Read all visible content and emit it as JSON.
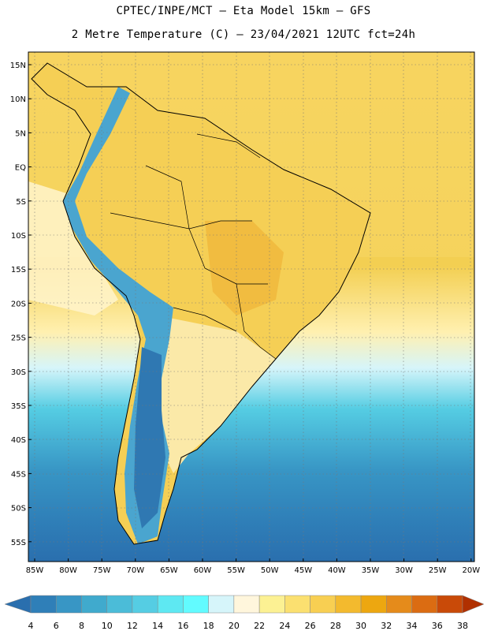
{
  "header": {
    "line1": "CPTEC/INPE/MCT –  Eta Model 15km – GFS",
    "line2": "2 Metre Temperature (C) – 23/04/2021 12UTC fct=24h"
  },
  "map": {
    "lat_labels": [
      "15N",
      "10N",
      "5N",
      "EQ",
      "5S",
      "10S",
      "15S",
      "20S",
      "25S",
      "30S",
      "35S",
      "40S",
      "45S",
      "50S",
      "55S"
    ],
    "lon_labels": [
      "85W",
      "80W",
      "75W",
      "70W",
      "65W",
      "60W",
      "55W",
      "50W",
      "45W",
      "40W",
      "35W",
      "30W",
      "25W",
      "20W"
    ],
    "region": "South America"
  },
  "colorbar": {
    "levels": [
      4,
      6,
      8,
      10,
      12,
      14,
      16,
      18,
      20,
      22,
      24,
      26,
      28,
      30,
      32,
      34,
      36,
      38
    ],
    "colors": [
      "#2a6fae",
      "#2f7fb8",
      "#3896c5",
      "#40aacd",
      "#4bbcd8",
      "#55cde3",
      "#5ee8f2",
      "#62fbff",
      "#d6f5fa",
      "#fff6dc",
      "#fcf193",
      "#fbe070",
      "#f8cf52",
      "#f3ba2e",
      "#eda710",
      "#e58b1b",
      "#db6c12",
      "#c94a08",
      "#b03000"
    ]
  }
}
